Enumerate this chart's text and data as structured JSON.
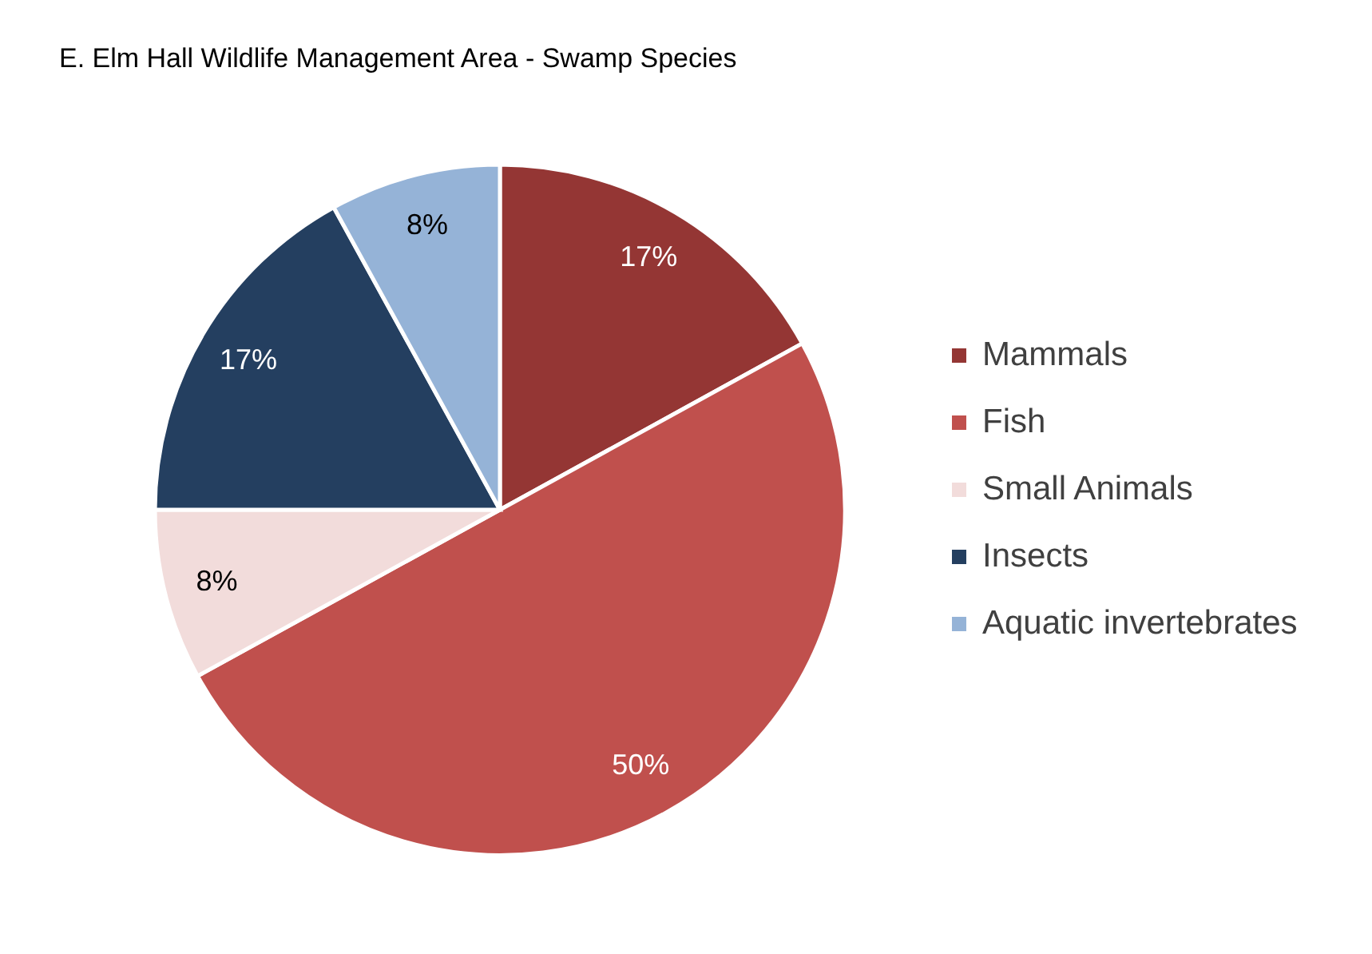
{
  "chart_data": {
    "type": "pie",
    "title": "E. Elm Hall Wildlife Management Area - Swamp Species",
    "categories": [
      "Mammals",
      "Fish",
      "Small Animals",
      "Insects",
      "Aquatic invertebrates"
    ],
    "values": [
      17,
      50,
      8,
      17,
      8
    ],
    "colors": [
      "#943634",
      "#c0504d",
      "#f2dcdb",
      "#243f60",
      "#95b3d7"
    ],
    "value_labels": [
      "17%",
      "50%",
      "8%",
      "17%",
      "8%"
    ],
    "legend": "right"
  }
}
